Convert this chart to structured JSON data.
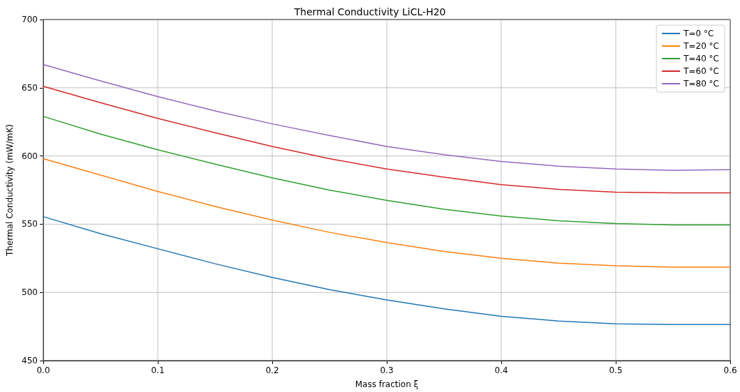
{
  "chart_data": {
    "type": "line",
    "title": "Thermal Conductivity LiCL-H20",
    "xlabel": "Mass fraction ξ",
    "ylabel": "Thermal Conductivity (mW/mK)",
    "x": [
      0,
      0.05,
      0.1,
      0.15,
      0.2,
      0.25,
      0.3,
      0.35,
      0.4,
      0.45,
      0.5,
      0.55,
      0.6
    ],
    "series": [
      {
        "name": "T=0 °C",
        "color": "#1f77b4",
        "values": [
          555.5,
          543,
          532,
          521,
          511,
          502,
          494.5,
          488,
          482.5,
          479,
          477,
          476.5,
          476.5
        ]
      },
      {
        "name": "T=20 °C",
        "color": "#ff7f0e",
        "values": [
          598,
          586,
          574,
          563,
          553,
          544,
          536.5,
          530,
          525,
          521.5,
          519.5,
          518.5,
          518.5
        ]
      },
      {
        "name": "T=40 °C",
        "color": "#2ca02c",
        "values": [
          629,
          616,
          604.5,
          594,
          584,
          575,
          567.5,
          561,
          556,
          552.5,
          550.5,
          549.5,
          549.5
        ]
      },
      {
        "name": "T=60 °C",
        "color": "#d62728",
        "values": [
          651,
          639,
          627.5,
          617,
          607,
          598,
          590.5,
          584.5,
          579,
          575.5,
          573.5,
          573,
          573
        ]
      },
      {
        "name": "T=80 °C",
        "color": "#9467bd",
        "values": [
          667,
          655,
          643.5,
          633,
          623.5,
          615,
          607,
          601,
          596,
          592.5,
          590.5,
          589.5,
          590
        ]
      }
    ],
    "xlim": [
      0,
      0.6
    ],
    "xticks": [
      {
        "value": 0,
        "label": "0.0"
      },
      {
        "value": 0.1,
        "label": "0.1"
      },
      {
        "value": 0.2,
        "label": "0.2"
      },
      {
        "value": 0.3,
        "label": "0.3"
      },
      {
        "value": 0.4,
        "label": "0.4"
      },
      {
        "value": 0.5,
        "label": "0.5"
      },
      {
        "value": 0.6,
        "label": "0.6"
      }
    ],
    "ylim": [
      450,
      700
    ],
    "yticks": [
      450,
      500,
      550,
      600,
      650,
      700
    ],
    "grid": true,
    "legend": "top right",
    "marker": "none",
    "line_style": "solid"
  }
}
